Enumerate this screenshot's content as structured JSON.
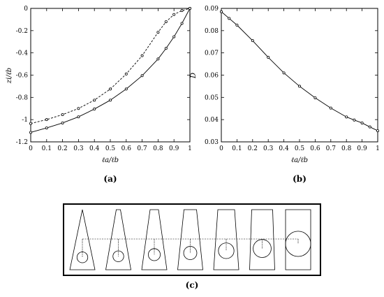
{
  "chart_data": [
    {
      "type": "line",
      "panel_label": "(a)",
      "xlabel": "ℓa/ℓb",
      "ylabel": "zi/ℓb",
      "xlim": [
        0,
        1
      ],
      "ylim": [
        -1.2,
        0
      ],
      "xticks": [
        0,
        0.1,
        0.2,
        0.3,
        0.4,
        0.5,
        0.6,
        0.7,
        0.8,
        0.9,
        1
      ],
      "xtick_labels": [
        "0",
        "0.1",
        "0.2",
        "0.3",
        "0.4",
        "0.5",
        "0.6",
        "0.7",
        "0.8",
        "0.9",
        "1"
      ],
      "yticks": [
        0,
        -0.2,
        -0.4,
        -0.6,
        -0.8,
        -1,
        -1.2
      ],
      "ytick_labels": [
        "0",
        "-0.2",
        "-0.4",
        "-0.6",
        "-0.8",
        "-1",
        "-1.2"
      ],
      "grid": false,
      "series": [
        {
          "style": "solid",
          "color": "#000000",
          "x": [
            0,
            0.1,
            0.2,
            0.3,
            0.4,
            0.5,
            0.6,
            0.7,
            0.8,
            0.85,
            0.9,
            0.95,
            1
          ],
          "y": [
            -1.115,
            -1.075,
            -1.03,
            -0.975,
            -0.905,
            -0.825,
            -0.725,
            -0.605,
            -0.455,
            -0.36,
            -0.255,
            -0.135,
            0
          ]
        },
        {
          "style": "dashed",
          "color": "#000000",
          "x": [
            0,
            0.1,
            0.2,
            0.3,
            0.4,
            0.5,
            0.6,
            0.7,
            0.8,
            0.85,
            0.9,
            0.95,
            1
          ],
          "y": [
            -1.035,
            -1.0,
            -0.955,
            -0.9,
            -0.825,
            -0.725,
            -0.59,
            -0.425,
            -0.215,
            -0.12,
            -0.055,
            -0.02,
            0
          ]
        }
      ]
    },
    {
      "type": "line",
      "panel_label": "(b)",
      "xlabel": "ℓa/ℓb",
      "ylabel": "D",
      "xlim": [
        0,
        1
      ],
      "ylim": [
        0.03,
        0.09
      ],
      "xticks": [
        0,
        0.1,
        0.2,
        0.3,
        0.4,
        0.5,
        0.6,
        0.7,
        0.8,
        0.9,
        1
      ],
      "xtick_labels": [
        "0",
        "0.1",
        "0.2",
        "0.3",
        "0.4",
        "0.5",
        "0.6",
        "0.7",
        "0.8",
        "0.9",
        "1"
      ],
      "yticks": [
        0.03,
        0.04,
        0.05,
        0.06,
        0.07,
        0.08,
        0.09
      ],
      "ytick_labels": [
        "0.03",
        "0.04",
        "0.05",
        "0.06",
        "0.07",
        "0.08",
        "0.09"
      ],
      "grid": false,
      "series": [
        {
          "style": "solid",
          "color": "#000000",
          "x": [
            0,
            0.05,
            0.1,
            0.2,
            0.3,
            0.4,
            0.5,
            0.6,
            0.7,
            0.8,
            0.85,
            0.9,
            0.95,
            1
          ],
          "y": [
            0.0885,
            0.0855,
            0.0825,
            0.0755,
            0.068,
            0.061,
            0.055,
            0.0498,
            0.0452,
            0.0412,
            0.0398,
            0.0385,
            0.0367,
            0.035
          ]
        }
      ]
    }
  ],
  "figure_c": {
    "panel_label": "(c)",
    "shapes": [
      {
        "top_fraction": 0.0,
        "circle_height_fraction": 0.18
      },
      {
        "top_fraction": 0.1667,
        "circle_height_fraction": 0.18
      },
      {
        "top_fraction": 0.3333,
        "circle_height_fraction": 0.2
      },
      {
        "top_fraction": 0.5,
        "circle_height_fraction": 0.22
      },
      {
        "top_fraction": 0.6667,
        "circle_height_fraction": 0.26
      },
      {
        "top_fraction": 0.8333,
        "circle_height_fraction": 0.3
      },
      {
        "top_fraction": 1.0,
        "circle_height_fraction": 0.42
      }
    ]
  }
}
